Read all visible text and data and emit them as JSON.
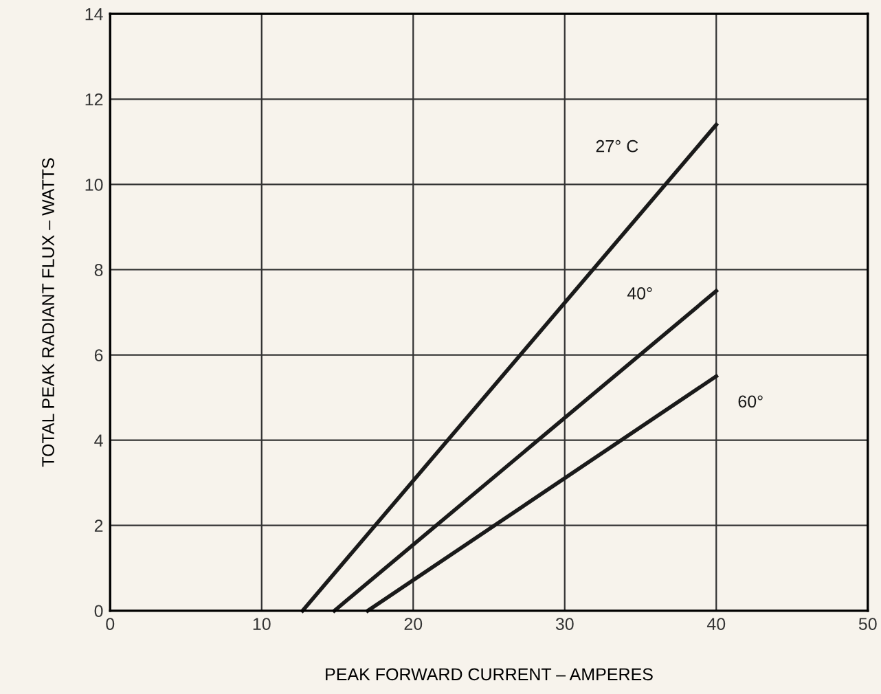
{
  "chart_data": {
    "type": "line",
    "xlabel": "PEAK FORWARD CURRENT – AMPERES",
    "ylabel": "TOTAL PEAK RADIANT FLUX – WATTS",
    "series": [
      {
        "name": "27° C",
        "color": "#1a1a1a",
        "x": [
          12.7,
          40
        ],
        "values": [
          0,
          11.4
        ]
      },
      {
        "name": "40°",
        "color": "#1a1a1a",
        "x": [
          14.8,
          40
        ],
        "values": [
          0,
          7.5
        ]
      },
      {
        "name": "60°",
        "color": "#1a1a1a",
        "x": [
          17.0,
          40
        ],
        "values": [
          0,
          5.5
        ]
      }
    ],
    "xlim": [
      0,
      50
    ],
    "xticks": [
      0,
      10,
      20,
      30,
      40,
      50
    ],
    "ylim": [
      0,
      14
    ],
    "yticks": [
      0,
      2,
      4,
      6,
      8,
      10,
      12,
      14
    ],
    "grid": true,
    "marker": "none",
    "line_style": "solid"
  }
}
